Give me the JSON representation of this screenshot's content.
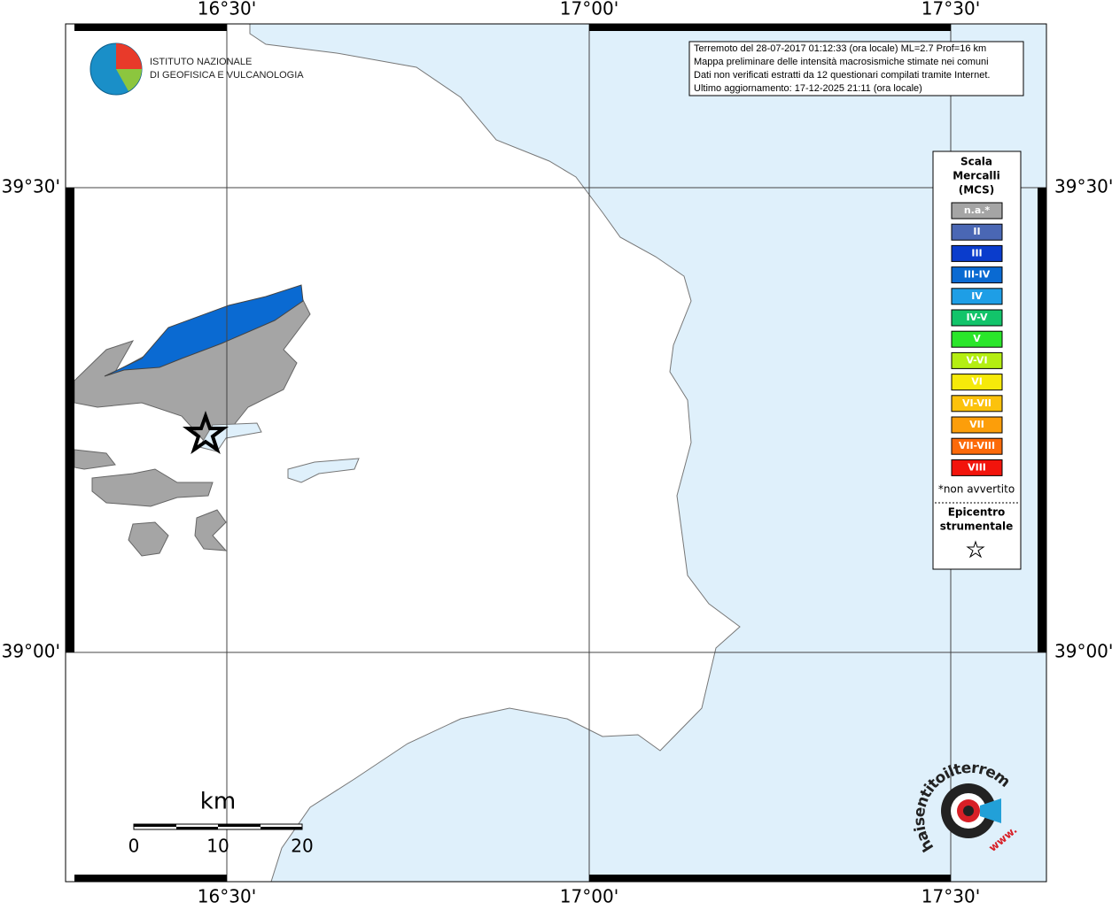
{
  "frame": {
    "top_labels": [
      "16°30'",
      "17°00'",
      "17°30'"
    ],
    "bottom_labels": [
      "16°30'",
      "17°00'",
      "17°30'"
    ],
    "left_labels": [
      "39°30'",
      "39°00'"
    ],
    "right_labels": [
      "39°30'",
      "39°00'"
    ]
  },
  "logo": {
    "line1": "ISTITUTO NAZIONALE",
    "line2": "DI GEOFISICA E VULCANOLOGIA"
  },
  "info": [
    "Terremoto del 28-07-2017 01:12:33 (ora locale) ML=2.7 Prof=16 km",
    "Mappa preliminare delle intensità macrosismiche stimate nei comuni",
    "Dati non verificati estratti da 12 questionari compilati tramite Internet.",
    "Ultimo aggiornamento: 17-12-2025 21:11 (ora locale)"
  ],
  "legend": {
    "title": [
      "Scala",
      "Mercalli",
      "(MCS)"
    ],
    "items": [
      {
        "label": "n.a.*",
        "color": "#a5a5a5"
      },
      {
        "label": "II",
        "color": "#4a67b4"
      },
      {
        "label": "III",
        "color": "#0a3ccc"
      },
      {
        "label": "III-IV",
        "color": "#0a6ad2"
      },
      {
        "label": "IV",
        "color": "#1e9ee6"
      },
      {
        "label": "IV-V",
        "color": "#12c46a"
      },
      {
        "label": "V",
        "color": "#2ae62a"
      },
      {
        "label": "V-VI",
        "color": "#b4ee12"
      },
      {
        "label": "VI",
        "color": "#f6ea0a"
      },
      {
        "label": "VI-VII",
        "color": "#fcc20c"
      },
      {
        "label": "VII",
        "color": "#fc9e0a"
      },
      {
        "label": "VII-VIII",
        "color": "#fc6a0a"
      },
      {
        "label": "VIII",
        "color": "#f2140c"
      }
    ],
    "note": "*non avvertito",
    "epicenter": [
      "Epicentro",
      "strumentale"
    ]
  },
  "scale_bar": {
    "unit": "km",
    "labels": [
      "0",
      "10",
      "20"
    ]
  },
  "site_logo": {
    "text": "haisentitoilterremoto.it",
    "www": "www."
  }
}
